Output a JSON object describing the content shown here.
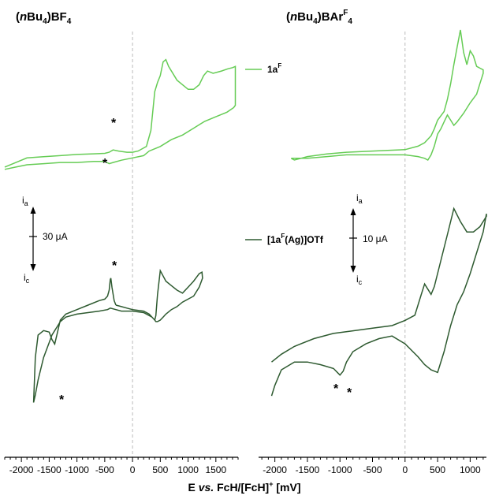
{
  "colors": {
    "light_green": "#66cc55",
    "dark_green": "#2e5a30",
    "zero_line": "#bbbbbb"
  },
  "panels": {
    "left": {
      "title_italic": "n",
      "title_pre": "(",
      "title_mid": "Bu",
      "title_sub1": "4",
      "title_post": ")BF",
      "title_sub2": "4",
      "x_ticks": [
        "-2000",
        "-1500",
        "-1000",
        "-500",
        "0",
        "500",
        "1000",
        "1500"
      ],
      "scale_bar": {
        "label": "30 μA",
        "anodic": "i",
        "anodic_sub": "a",
        "cathodic": "i",
        "cathodic_sub": "c"
      }
    },
    "right": {
      "title_italic": "n",
      "title_pre": "(",
      "title_mid": "Bu",
      "title_sub1": "4",
      "title_post": ")BAr",
      "title_sup": "F",
      "title_sub2": "4",
      "x_ticks": [
        "-2000",
        "-1500",
        "-1000",
        "-500",
        "0",
        "500",
        "1000"
      ],
      "scale_bar": {
        "label": "10 μA",
        "anodic": "i",
        "anodic_sub": "a",
        "cathodic": "i",
        "cathodic_sub": "c"
      }
    }
  },
  "legend": [
    {
      "label_main": "1a",
      "label_sup": "F",
      "label_tail": ""
    },
    {
      "label_main": "[1a",
      "label_sup": "F",
      "label_tail": "(Ag)]OTf"
    }
  ],
  "x_axis_title": {
    "prefix": "E ",
    "italic": "vs.",
    "mid": " FcH/[FcH]",
    "sup": "+",
    "suffix": " [mV]"
  },
  "annotations": {
    "star": "*"
  },
  "chart_data": [
    {
      "type": "line",
      "title": "(nBu4)BF4",
      "xlabel": "E vs. FcH/[FcH]+ [mV]",
      "xlim": [
        -2300,
        1900
      ],
      "series": [
        {
          "name": "1aF",
          "x": [
            -2300,
            -2150,
            -1900,
            -1600,
            -1300,
            -1000,
            -700,
            -500,
            -420,
            -350,
            -250,
            -100,
            0,
            100,
            250,
            330,
            400,
            450,
            500,
            550,
            600,
            650,
            800,
            1000,
            1100,
            1200,
            1280,
            1350,
            1450,
            1600,
            1720,
            1800,
            1850,
            1850,
            1820,
            1700,
            1500,
            1300,
            1100,
            900,
            700,
            500,
            400,
            300,
            200,
            0,
            -200,
            -350,
            -420,
            -500,
            -700,
            -1000,
            -1300,
            -1600,
            -1900,
            -2100,
            -2300
          ],
          "y": [
            -1.1,
            -0.95,
            -0.7,
            -0.65,
            -0.6,
            -0.55,
            -0.52,
            -0.5,
            -0.45,
            -0.35,
            -0.4,
            -0.45,
            -0.45,
            -0.4,
            -0.2,
            0.5,
            2.2,
            2.6,
            2.9,
            3.5,
            3.6,
            3.3,
            2.7,
            2.3,
            2.3,
            2.5,
            2.9,
            3.1,
            3.0,
            3.1,
            3.2,
            3.25,
            3.3,
            1.6,
            1.5,
            1.3,
            1.1,
            0.9,
            0.6,
            0.3,
            0.1,
            -0.2,
            -0.3,
            -0.4,
            -0.6,
            -0.7,
            -0.8,
            -0.9,
            -0.95,
            -0.85,
            -0.85,
            -0.9,
            -0.9,
            -0.95,
            -1.0,
            -1.1,
            -1.2
          ]
        },
        {
          "name": "[1aF(Ag)]OTf",
          "x": [
            -300,
            -330,
            -370,
            -390,
            -400,
            -420,
            -450,
            -500,
            -600,
            -800,
            -1000,
            -1200,
            -1300,
            -1350,
            -1400,
            -1450,
            -1500,
            -1600,
            -1700,
            -1750,
            -1780,
            -1750,
            -1700,
            -1600,
            -1500,
            -1450,
            -1400,
            -1350,
            -1300,
            -1200,
            -1000,
            -800,
            -600,
            -450,
            -400,
            -300,
            -200,
            0,
            200,
            350,
            400,
            420,
            450,
            500,
            600,
            700,
            800,
            900,
            1000,
            1100,
            1200,
            1250,
            1260,
            1200,
            1100,
            1000,
            900,
            800,
            700,
            600,
            550,
            500,
            450,
            420,
            400,
            350,
            300,
            200,
            0,
            -100,
            -200,
            -300
          ],
          "y": [
            2.0,
            2.3,
            3.2,
            3.8,
            3.7,
            3.0,
            2.6,
            2.4,
            2.3,
            2.0,
            1.7,
            1.4,
            1.0,
            0.2,
            -0.6,
            -0.3,
            0.2,
            0.3,
            0.0,
            -1.5,
            -4.5,
            -4.0,
            -3.0,
            -1.5,
            -0.5,
            0.0,
            0.3,
            0.6,
            0.9,
            1.2,
            1.4,
            1.5,
            1.6,
            1.7,
            1.8,
            1.7,
            1.6,
            1.6,
            1.5,
            1.2,
            1.0,
            1.3,
            2.7,
            4.3,
            3.6,
            3.3,
            3.0,
            2.8,
            3.2,
            3.6,
            4.1,
            4.2,
            3.8,
            3.2,
            2.6,
            2.4,
            2.2,
            1.9,
            1.7,
            1.4,
            1.2,
            1.0,
            0.9,
            0.9,
            1.0,
            1.2,
            1.4,
            1.6,
            1.7,
            1.8,
            1.9,
            2.0
          ]
        }
      ]
    },
    {
      "type": "line",
      "title": "(nBu4)BArF4",
      "xlabel": "E vs. FcH/[FcH]+ [mV]",
      "xlim": [
        -2250,
        1250
      ],
      "series": [
        {
          "name": "1aF",
          "x": [
            -1750,
            -1700,
            -1500,
            -1200,
            -900,
            -600,
            -300,
            0,
            200,
            300,
            400,
            450,
            500,
            600,
            650,
            700,
            750,
            800,
            850,
            900,
            950,
            1000,
            1050,
            1100,
            1150,
            1200,
            1200,
            1150,
            1100,
            1000,
            900,
            800,
            750,
            700,
            650,
            600,
            550,
            500,
            450,
            400,
            350,
            300,
            200,
            0,
            -300,
            -600,
            -900,
            -1200,
            -1500,
            -1750
          ],
          "y": [
            1.1,
            1.0,
            1.2,
            1.35,
            1.45,
            1.5,
            1.55,
            1.6,
            1.8,
            2.0,
            2.4,
            2.8,
            3.3,
            3.8,
            4.5,
            5.4,
            6.5,
            7.5,
            8.5,
            7.2,
            6.5,
            7.3,
            7.0,
            6.4,
            6.3,
            6.2,
            6.0,
            5.4,
            4.8,
            4.3,
            3.7,
            3.2,
            3.0,
            3.3,
            3.6,
            3.2,
            2.8,
            2.5,
            1.8,
            1.3,
            1.0,
            1.1,
            1.2,
            1.3,
            1.3,
            1.3,
            1.3,
            1.2,
            1.1,
            1.1
          ]
        },
        {
          "name": "[1aF(Ag)]OTf",
          "x": [
            -2050,
            -2000,
            -1900,
            -1700,
            -1500,
            -1300,
            -1100,
            -1000,
            -950,
            -900,
            -800,
            -600,
            -400,
            -200,
            0,
            200,
            300,
            400,
            500,
            600,
            700,
            800,
            900,
            1000,
            1100,
            1200,
            1250,
            1250,
            1150,
            1050,
            950,
            850,
            750,
            650,
            550,
            450,
            400,
            350,
            300,
            250,
            150,
            0,
            -200,
            -500,
            -800,
            -1100,
            -1400,
            -1700,
            -1900,
            -2050
          ],
          "y": [
            1.3,
            1.7,
            2.3,
            2.6,
            2.6,
            2.5,
            2.35,
            2.1,
            2.25,
            2.6,
            3.0,
            3.3,
            3.5,
            3.6,
            3.3,
            2.8,
            2.5,
            2.3,
            2.2,
            3.0,
            4.0,
            4.8,
            5.3,
            6.0,
            6.8,
            7.6,
            8.3,
            8.2,
            7.8,
            7.6,
            7.6,
            8.0,
            8.5,
            7.5,
            6.5,
            5.5,
            5.2,
            5.4,
            5.6,
            5.2,
            4.4,
            4.2,
            4.0,
            3.9,
            3.8,
            3.7,
            3.5,
            3.2,
            2.9,
            2.6
          ]
        }
      ]
    }
  ]
}
